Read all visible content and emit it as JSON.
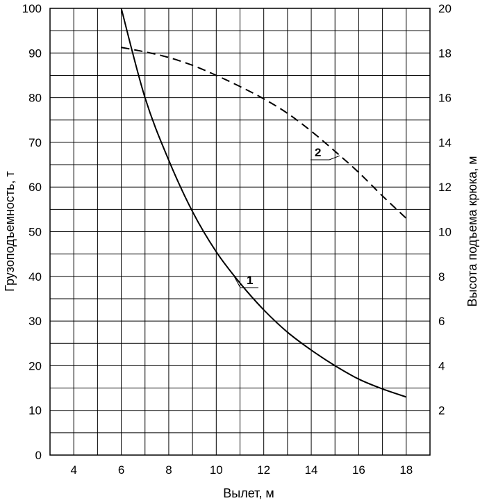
{
  "chart_data": {
    "type": "line",
    "xlabel": "Вылет, м",
    "ylabel": "Грузоподъемность, т",
    "y2label": "Высота подъема крюка, м",
    "xlim": [
      3,
      19
    ],
    "ylim": [
      0,
      100
    ],
    "y2lim": [
      0,
      20
    ],
    "x_ticks": [
      "4",
      "6",
      "8",
      "10",
      "12",
      "14",
      "16",
      "18"
    ],
    "y_ticks": [
      "0",
      "10",
      "20",
      "30",
      "40",
      "50",
      "60",
      "70",
      "80",
      "90",
      "100"
    ],
    "y2_ticks": [
      "2",
      "4",
      "6",
      "8",
      "10",
      "12",
      "14",
      "16",
      "18",
      "20"
    ],
    "grid": true,
    "series": [
      {
        "name": "1",
        "axis": "left",
        "style": "solid",
        "x": [
          6,
          7,
          8,
          9,
          10,
          11,
          12,
          13,
          14,
          15,
          16,
          17,
          18
        ],
        "y": [
          100,
          80,
          66,
          54.5,
          45.5,
          38.5,
          32.5,
          27.5,
          23.5,
          20,
          17,
          14.8,
          13
        ]
      },
      {
        "name": "2",
        "axis": "right",
        "style": "dashed",
        "x": [
          6,
          7,
          8,
          9,
          10,
          11,
          12,
          13,
          14,
          15,
          16,
          17,
          18
        ],
        "y": [
          18.25,
          18.05,
          17.8,
          17.45,
          17.0,
          16.5,
          15.95,
          15.3,
          14.5,
          13.6,
          12.65,
          11.6,
          10.6
        ]
      }
    ]
  }
}
